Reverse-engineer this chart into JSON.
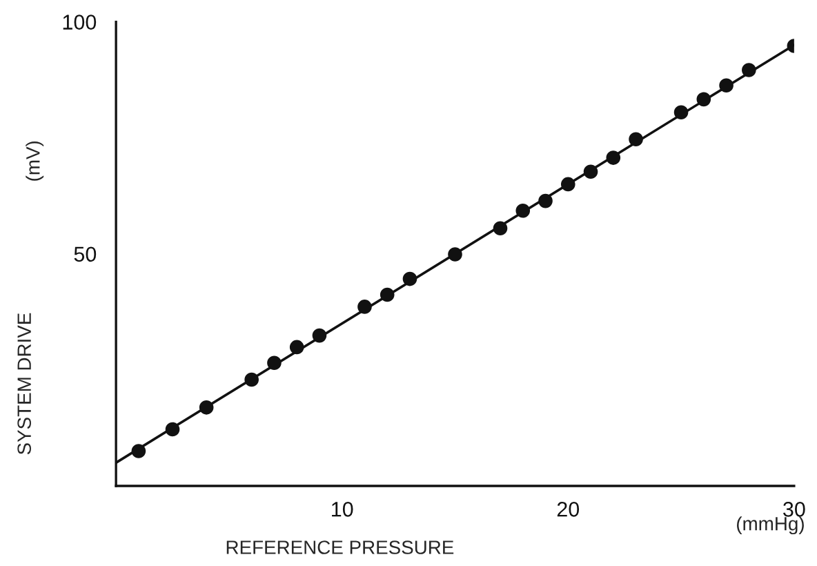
{
  "chart_data": {
    "type": "scatter",
    "xlabel": "REFERENCE PRESSURE",
    "ylabel": "SYSTEM DRIVE",
    "annotations": [
      "(mmHg)",
      "(mV)"
    ],
    "xlim": [
      0,
      30
    ],
    "ylim": [
      0,
      100
    ],
    "xticks": [
      10,
      20,
      30
    ],
    "yticks": [
      50,
      100
    ],
    "grid": false,
    "legend": false,
    "series": [
      {
        "marker": "circle",
        "color": "#111111",
        "x": [
          1,
          2.5,
          4,
          6,
          7,
          8,
          9,
          11,
          12,
          13,
          15,
          17,
          18,
          19,
          20,
          21,
          22,
          23,
          25,
          26,
          27,
          28,
          30
        ],
        "values": [
          7.5,
          12.2,
          16.9,
          22.9,
          26.5,
          29.9,
          32.4,
          38.6,
          41.2,
          44.6,
          49.9,
          55.5,
          59.3,
          61.4,
          65,
          67.7,
          70.7,
          74.7,
          80.5,
          83.3,
          86.3,
          89.6,
          94.8
        ]
      },
      {
        "type": "line",
        "color": "#111111",
        "line_style": "solid",
        "x": [
          0,
          30
        ],
        "values": [
          5,
          95
        ]
      }
    ]
  }
}
